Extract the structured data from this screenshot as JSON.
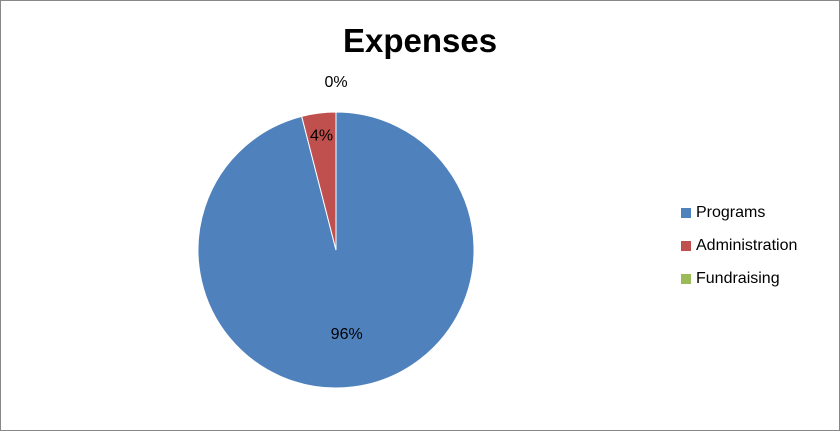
{
  "chart_data": {
    "type": "pie",
    "title": "Expenses",
    "slices": [
      {
        "label": "Programs",
        "value": 96,
        "data_label": "96%",
        "color": "#4F81BD"
      },
      {
        "label": "Administration",
        "value": 4,
        "data_label": "4%",
        "color": "#C0504D"
      },
      {
        "label": "Fundraising",
        "value": 0,
        "data_label": "0%",
        "color": "#9BBB59"
      }
    ],
    "legend_position": "right",
    "start_angle_deg": 0,
    "direction": "clockwise"
  }
}
